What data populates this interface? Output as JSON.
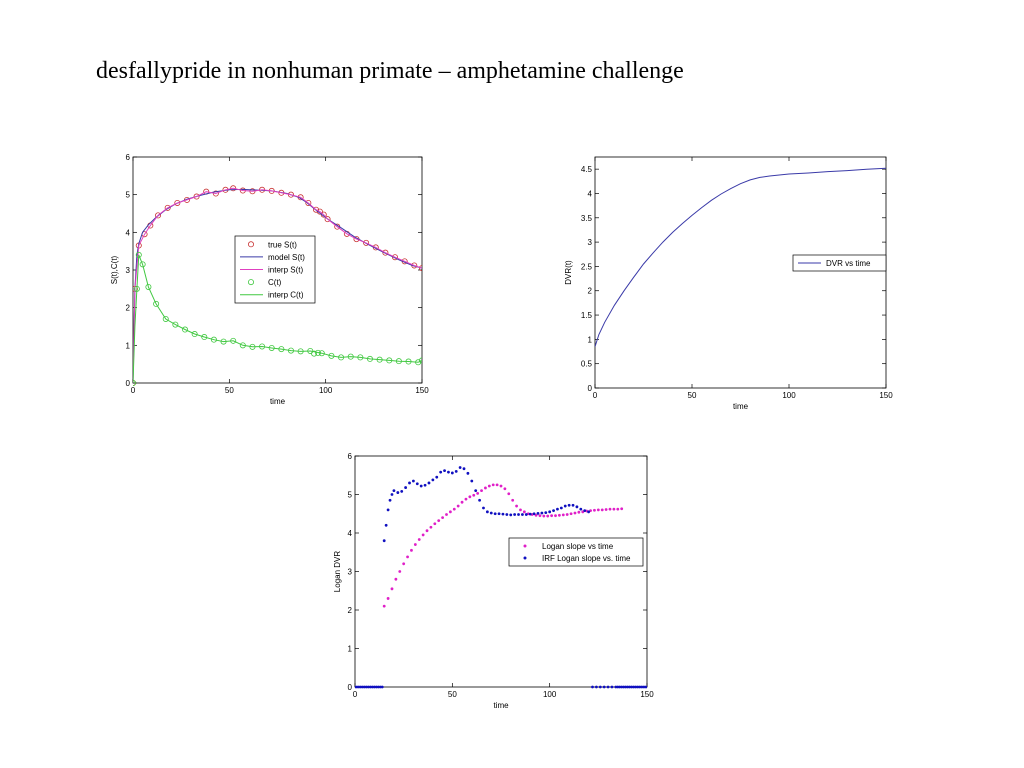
{
  "page": {
    "title": "desfallypride in nonhuman primate – amphetamine challenge"
  },
  "chart_data": [
    {
      "type": "line",
      "xlabel": "time",
      "ylabel": "S(t),C(t)",
      "xlim": [
        0,
        150
      ],
      "ylim": [
        0,
        6
      ],
      "xticks": [
        0,
        50,
        100,
        150
      ],
      "yticks": [
        0,
        1,
        2,
        3,
        4,
        5,
        6
      ],
      "legend_position": "center-right",
      "series": [
        {
          "name": "true S(t)",
          "style": "markers",
          "marker": "circle",
          "color": "#c83232",
          "x": [
            0,
            1,
            3,
            6,
            9,
            13,
            18,
            23,
            28,
            33,
            38,
            43,
            48,
            52,
            57,
            62,
            67,
            72,
            77,
            82,
            87,
            91,
            95,
            97,
            99,
            101,
            106,
            111,
            116,
            121,
            126,
            131,
            136,
            141,
            146,
            150
          ],
          "y": [
            0,
            2.5,
            3.65,
            3.95,
            4.18,
            4.45,
            4.65,
            4.78,
            4.86,
            4.95,
            5.08,
            5.03,
            5.13,
            5.17,
            5.11,
            5.09,
            5.13,
            5.1,
            5.05,
            5.0,
            4.93,
            4.78,
            4.6,
            4.55,
            4.47,
            4.35,
            4.15,
            3.96,
            3.82,
            3.72,
            3.6,
            3.46,
            3.34,
            3.23,
            3.12,
            3.05
          ]
        },
        {
          "name": "model S(t)",
          "style": "line",
          "color": "#3a3aa8",
          "x": [
            0,
            1,
            2,
            3,
            5,
            8,
            12,
            17,
            22,
            28,
            35,
            42,
            50,
            57,
            65,
            72,
            80,
            86,
            90,
            94,
            98,
            102,
            108,
            115,
            122,
            130,
            138,
            145,
            150
          ],
          "y": [
            0,
            2.5,
            3.4,
            3.7,
            4.0,
            4.2,
            4.4,
            4.6,
            4.75,
            4.88,
            4.98,
            5.07,
            5.13,
            5.14,
            5.12,
            5.1,
            5.03,
            4.93,
            4.8,
            4.63,
            4.47,
            4.32,
            4.12,
            3.88,
            3.68,
            3.47,
            3.27,
            3.12,
            3.05
          ]
        },
        {
          "name": "interp S(t)",
          "style": "line",
          "color": "#e040c0",
          "x": [
            0,
            1,
            3,
            6,
            9,
            13,
            18,
            23,
            28,
            33,
            38,
            43,
            48,
            52,
            57,
            62,
            67,
            72,
            77,
            82,
            87,
            91,
            95,
            97,
            99,
            101,
            106,
            111,
            116,
            121,
            126,
            131,
            136,
            141,
            146,
            150
          ],
          "y": [
            0,
            2.5,
            3.65,
            3.95,
            4.18,
            4.45,
            4.65,
            4.78,
            4.86,
            4.95,
            5.08,
            5.03,
            5.13,
            5.17,
            5.11,
            5.09,
            5.13,
            5.1,
            5.05,
            5.0,
            4.93,
            4.78,
            4.6,
            4.55,
            4.47,
            4.35,
            4.15,
            3.96,
            3.82,
            3.72,
            3.6,
            3.46,
            3.34,
            3.23,
            3.12,
            3.05
          ]
        },
        {
          "name": "C(t)",
          "style": "markers",
          "marker": "circle",
          "color": "#40c840",
          "x": [
            0,
            2,
            3,
            5,
            8,
            12,
            17,
            22,
            27,
            32,
            37,
            42,
            47,
            52,
            57,
            62,
            67,
            72,
            77,
            82,
            87,
            92,
            94,
            96,
            98,
            103,
            108,
            113,
            118,
            123,
            128,
            133,
            138,
            143,
            148,
            150
          ],
          "y": [
            0,
            2.5,
            3.4,
            3.15,
            2.55,
            2.1,
            1.7,
            1.55,
            1.42,
            1.3,
            1.22,
            1.15,
            1.1,
            1.12,
            1.0,
            0.96,
            0.97,
            0.93,
            0.9,
            0.86,
            0.84,
            0.85,
            0.78,
            0.8,
            0.79,
            0.72,
            0.68,
            0.7,
            0.68,
            0.64,
            0.62,
            0.6,
            0.58,
            0.57,
            0.55,
            0.6
          ]
        },
        {
          "name": "interp C(t)",
          "style": "line",
          "color": "#40c840",
          "x": [
            0,
            1,
            2,
            3,
            5,
            8,
            12,
            17,
            22,
            27,
            32,
            37,
            42,
            47,
            52,
            57,
            62,
            67,
            72,
            77,
            82,
            87,
            92,
            98,
            103,
            108,
            113,
            118,
            123,
            128,
            133,
            138,
            143,
            148,
            150
          ],
          "y": [
            0,
            1.5,
            2.5,
            3.4,
            3.15,
            2.55,
            2.1,
            1.7,
            1.55,
            1.42,
            1.3,
            1.22,
            1.15,
            1.1,
            1.12,
            1.0,
            0.96,
            0.97,
            0.93,
            0.9,
            0.86,
            0.84,
            0.85,
            0.79,
            0.72,
            0.68,
            0.7,
            0.68,
            0.64,
            0.62,
            0.6,
            0.58,
            0.57,
            0.55,
            0.6
          ]
        }
      ]
    },
    {
      "type": "line",
      "xlabel": "time",
      "ylabel": "DVR(t)",
      "xlim": [
        0,
        150
      ],
      "ylim": [
        0,
        4.75
      ],
      "xticks": [
        0,
        50,
        100,
        150
      ],
      "yticks": [
        0,
        0.5,
        1,
        1.5,
        2,
        2.5,
        3,
        3.5,
        4,
        4.5
      ],
      "legend_position": "right",
      "series": [
        {
          "name": "DVR vs time",
          "style": "line",
          "color": "#3a3aa8",
          "x": [
            0,
            2,
            5,
            10,
            15,
            20,
            25,
            30,
            35,
            40,
            45,
            50,
            55,
            60,
            65,
            70,
            75,
            80,
            85,
            90,
            95,
            100,
            110,
            120,
            130,
            140,
            145,
            150
          ],
          "y": [
            0.85,
            1.1,
            1.35,
            1.7,
            2.0,
            2.28,
            2.55,
            2.78,
            3.0,
            3.2,
            3.38,
            3.55,
            3.71,
            3.86,
            3.99,
            4.1,
            4.2,
            4.28,
            4.33,
            4.36,
            4.38,
            4.4,
            4.42,
            4.45,
            4.47,
            4.5,
            4.51,
            4.52
          ]
        }
      ]
    },
    {
      "type": "scatter",
      "xlabel": "time",
      "ylabel": "Logan DVR",
      "xlim": [
        0,
        150
      ],
      "ylim": [
        0,
        6
      ],
      "xticks": [
        0,
        50,
        100,
        150
      ],
      "yticks": [
        0,
        1,
        2,
        3,
        4,
        5,
        6
      ],
      "legend_position": "right",
      "series": [
        {
          "name": "Logan slope vs time",
          "style": "dots",
          "color": "#e020c8",
          "x": [
            15,
            17,
            19,
            21,
            23,
            25,
            27,
            29,
            31,
            33,
            35,
            37,
            39,
            41,
            43,
            45,
            47,
            49,
            51,
            53,
            55,
            57,
            59,
            61,
            63,
            65,
            67,
            69,
            71,
            73,
            75,
            77,
            79,
            81,
            83,
            85,
            87,
            89,
            91,
            93,
            95,
            97,
            99,
            101,
            103,
            105,
            107,
            109,
            111,
            113,
            115,
            117,
            119,
            121,
            123,
            125,
            127,
            129,
            131,
            133,
            135,
            137
          ],
          "y": [
            2.1,
            2.3,
            2.55,
            2.8,
            3.0,
            3.2,
            3.38,
            3.55,
            3.7,
            3.83,
            3.95,
            4.06,
            4.15,
            4.24,
            4.32,
            4.4,
            4.48,
            4.55,
            4.62,
            4.7,
            4.8,
            4.88,
            4.94,
            4.98,
            5.03,
            5.1,
            5.17,
            5.22,
            5.25,
            5.25,
            5.22,
            5.15,
            5.02,
            4.85,
            4.7,
            4.6,
            4.55,
            4.5,
            4.48,
            4.46,
            4.45,
            4.44,
            4.44,
            4.45,
            4.45,
            4.46,
            4.47,
            4.48,
            4.5,
            4.52,
            4.54,
            4.55,
            4.57,
            4.58,
            4.59,
            4.6,
            4.6,
            4.61,
            4.62,
            4.62,
            4.62,
            4.63
          ]
        },
        {
          "name": "IRF Logan slope vs. time",
          "style": "dots",
          "color": "#1010c0",
          "x": [
            0,
            1,
            2,
            3,
            4,
            5,
            6,
            7,
            8,
            9,
            10,
            11,
            12,
            13,
            14,
            15,
            16,
            17,
            18,
            19,
            20,
            22,
            24,
            26,
            28,
            30,
            32,
            34,
            36,
            38,
            40,
            42,
            44,
            46,
            48,
            50,
            52,
            54,
            56,
            58,
            60,
            62,
            64,
            66,
            68,
            70,
            72,
            74,
            76,
            78,
            80,
            82,
            84,
            86,
            88,
            90,
            92,
            94,
            96,
            98,
            100,
            102,
            104,
            106,
            108,
            110,
            112,
            114,
            116,
            118,
            120,
            122,
            124,
            126,
            128,
            130,
            132,
            134,
            135,
            136,
            137,
            138,
            139,
            140,
            141,
            142,
            143,
            144,
            145,
            146,
            147,
            148,
            149,
            150
          ],
          "y": [
            0,
            0,
            0,
            0,
            0,
            0,
            0,
            0,
            0,
            0,
            0,
            0,
            0,
            0,
            0,
            3.8,
            4.2,
            4.6,
            4.85,
            5.0,
            5.1,
            5.05,
            5.08,
            5.18,
            5.3,
            5.35,
            5.28,
            5.22,
            5.24,
            5.3,
            5.38,
            5.45,
            5.58,
            5.62,
            5.58,
            5.56,
            5.6,
            5.7,
            5.67,
            5.55,
            5.35,
            5.1,
            4.85,
            4.65,
            4.55,
            4.52,
            4.5,
            4.5,
            4.49,
            4.48,
            4.47,
            4.48,
            4.48,
            4.48,
            4.48,
            4.49,
            4.5,
            4.51,
            4.52,
            4.53,
            4.55,
            4.58,
            4.62,
            4.65,
            4.7,
            4.72,
            4.72,
            4.68,
            4.62,
            4.58,
            4.55,
            0,
            0,
            0,
            0,
            0,
            0,
            0,
            0,
            0,
            0,
            0,
            0,
            0,
            0,
            0,
            0,
            0,
            0,
            0,
            0,
            0,
            0,
            0
          ]
        }
      ]
    }
  ]
}
